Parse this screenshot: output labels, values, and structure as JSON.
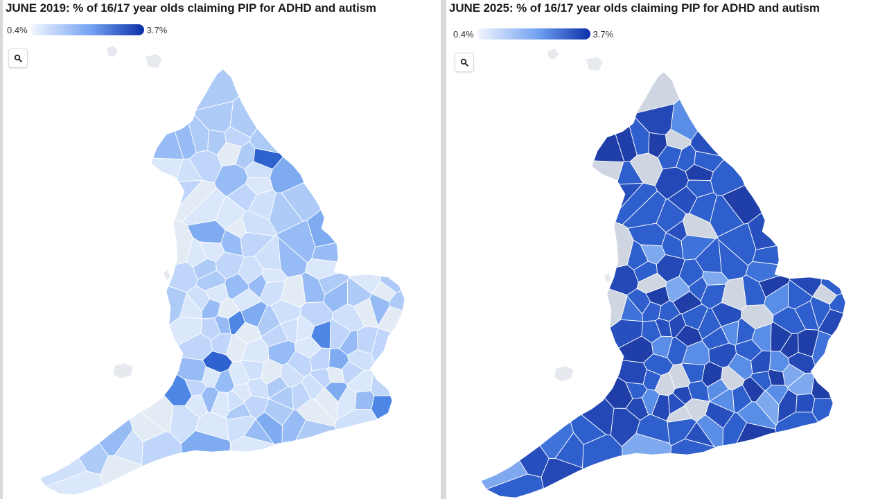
{
  "maps": [
    {
      "title": "JUNE 2019: % of 16/17 year olds claiming PIP for ADHD and autism",
      "legend": {
        "min_label": "0.4%",
        "max_label": "3.7%",
        "min_color": "#f3f7ff",
        "max_color": "#0b2fa8"
      },
      "zoom_icon": "search-icon",
      "fill_palette": [
        "#e3ebf5",
        "#dbe7fb",
        "#cfe0fb",
        "#bfd6fa",
        "#aecbf7",
        "#97bbf4",
        "#7fabf0",
        "#4d86e4",
        "#2d62cf"
      ],
      "no_data_color": "#e6e9ee"
    },
    {
      "title": "JUNE 2025: % of 16/17 year olds claiming PIP for ADHD and autism",
      "legend": {
        "min_label": "0.4%",
        "max_label": "3.7%",
        "min_color": "#f3f7ff",
        "max_color": "#0b2fa8"
      },
      "zoom_icon": "search-icon",
      "fill_palette": [
        "#cfd6e2",
        "#7fa9ee",
        "#5a8de6",
        "#3f73da",
        "#2f5fcc",
        "#2750be",
        "#2448b5",
        "#1f3ea8"
      ],
      "no_data_color": "#e6e9ee"
    }
  ]
}
